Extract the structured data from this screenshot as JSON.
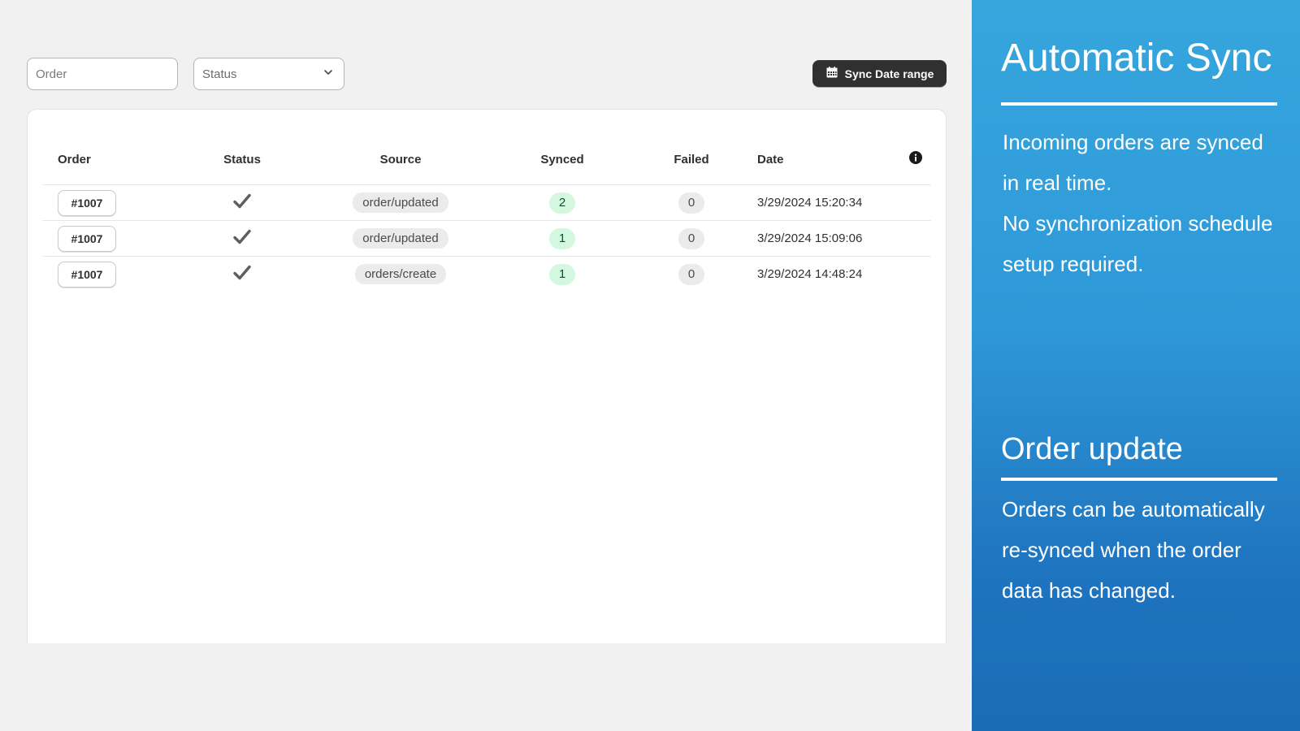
{
  "filters": {
    "order_placeholder": "Order",
    "status_label": "Status",
    "sync_button_label": "Sync Date range"
  },
  "table": {
    "headers": {
      "order": "Order",
      "status": "Status",
      "source": "Source",
      "synced": "Synced",
      "failed": "Failed",
      "date": "Date"
    },
    "rows": [
      {
        "order": "#1007",
        "status": "check-icon",
        "source": "order/updated",
        "synced": "2",
        "failed": "0",
        "date": "3/29/2024 15:20:34"
      },
      {
        "order": "#1007",
        "status": "check-icon",
        "source": "order/updated",
        "synced": "1",
        "failed": "0",
        "date": "3/29/2024 15:09:06"
      },
      {
        "order": "#1007",
        "status": "check-icon",
        "source": "orders/create",
        "synced": "1",
        "failed": "0",
        "date": "3/29/2024 14:48:24"
      }
    ]
  },
  "promo": {
    "title": "Automatic Sync",
    "line1a": "Incoming orders are synced",
    "line1b": "in real time.",
    "line2a": "No synchronization schedule",
    "line2b": "setup required.",
    "subtitle": "Order update",
    "line3a": "Orders can be automatically",
    "line3b": "re-synced when the order",
    "line3c": "data has changed."
  },
  "colors": {
    "synced_badge_bg": "#d3f8df",
    "neutral_badge_bg": "#ebebeb",
    "button_bg": "#303030",
    "panel_top": "#36a6dd",
    "panel_bottom": "#1b6cb6"
  }
}
